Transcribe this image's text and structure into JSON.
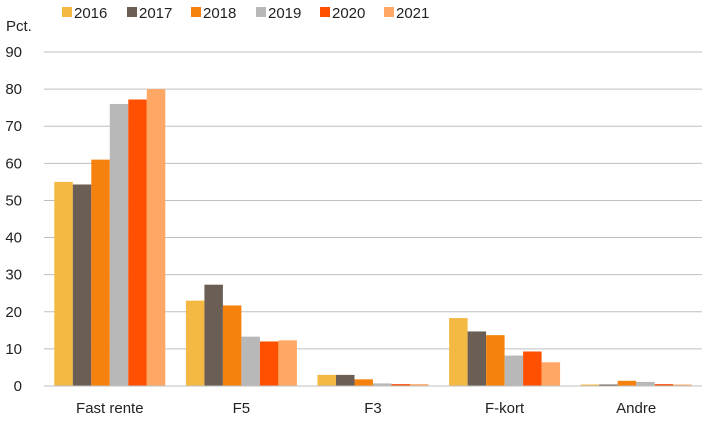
{
  "chart_data": {
    "type": "bar",
    "ylabel": "Pct.",
    "ylim": [
      0,
      90
    ],
    "yticks": [
      0,
      10,
      20,
      30,
      40,
      50,
      60,
      70,
      80,
      90
    ],
    "grid": true,
    "legend_position": "top",
    "categories": [
      "Fast rente",
      "F5",
      "F3",
      "F-kort",
      "Andre"
    ],
    "series": [
      {
        "name": "2016",
        "color": "#f4b942",
        "values": [
          55,
          23,
          3,
          18.3,
          0.4
        ]
      },
      {
        "name": "2017",
        "color": "#6b5f55",
        "values": [
          54.3,
          27.3,
          3,
          14.7,
          0.4
        ]
      },
      {
        "name": "2018",
        "color": "#f5820d",
        "values": [
          61,
          21.7,
          1.8,
          13.7,
          1.4
        ]
      },
      {
        "name": "2019",
        "color": "#b8b8b8",
        "values": [
          76,
          13.3,
          0.7,
          8.2,
          1.1
        ]
      },
      {
        "name": "2020",
        "color": "#ff4f00",
        "values": [
          77.2,
          12,
          0.5,
          9.3,
          0.5
        ]
      },
      {
        "name": "2021",
        "color": "#ffa866",
        "values": [
          80,
          12.3,
          0.5,
          6.4,
          0.4
        ]
      }
    ]
  }
}
